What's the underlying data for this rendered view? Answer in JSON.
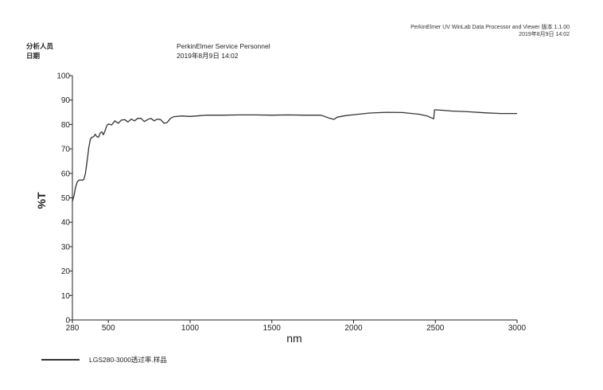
{
  "header": {
    "software": "PerkinElmer UV WinLab Data Processor and Viewer 版本 1.1.00",
    "timestamp": "2019年8月9日 14:02"
  },
  "meta": {
    "analyst_label": "分析人员",
    "date_label": "日期",
    "analyst_value": "PerkinElmer Service Personnel",
    "date_value": "2019年8月9日 14:02"
  },
  "chart_data": {
    "type": "line",
    "xlabel": "nm",
    "ylabel": "%T",
    "xlim": [
      280,
      3000
    ],
    "ylim": [
      0,
      100
    ],
    "x_ticks": [
      280,
      500,
      1000,
      1500,
      2000,
      2500,
      3000
    ],
    "y_ticks": [
      0,
      10,
      20,
      30,
      40,
      50,
      60,
      70,
      80,
      90,
      100
    ],
    "grid": false,
    "legend_position": "bottom-left",
    "series": [
      {
        "name": "LGS280-3000透过率.样品",
        "color": "#333333",
        "x": [
          280,
          290,
          300,
          310,
          320,
          330,
          340,
          350,
          360,
          370,
          380,
          390,
          400,
          410,
          420,
          430,
          440,
          450,
          460,
          470,
          480,
          490,
          500,
          520,
          540,
          560,
          580,
          600,
          620,
          640,
          660,
          680,
          700,
          720,
          740,
          760,
          780,
          800,
          820,
          840,
          860,
          880,
          900,
          950,
          1000,
          1100,
          1200,
          1300,
          1400,
          1500,
          1600,
          1700,
          1800,
          1850,
          1880,
          1900,
          1950,
          2000,
          2100,
          2200,
          2300,
          2400,
          2450,
          2490,
          2495,
          2500,
          2550,
          2600,
          2700,
          2800,
          2900,
          3000
        ],
        "values": [
          48.5,
          51,
          54.5,
          56.5,
          57.2,
          57.3,
          57.2,
          57.5,
          60,
          65,
          70.5,
          74,
          74.8,
          75,
          76,
          75,
          74.8,
          76.5,
          77,
          75.8,
          77.5,
          79.5,
          80.2,
          79.8,
          81.5,
          80.5,
          81.8,
          82,
          81,
          82.2,
          81.5,
          82.5,
          82.5,
          81.2,
          82,
          82.5,
          81.5,
          82.2,
          82,
          80.5,
          80.8,
          82.5,
          83.2,
          83.5,
          83.3,
          83.8,
          83.8,
          83.9,
          83.9,
          83.8,
          83.9,
          83.8,
          83.8,
          82.6,
          82.1,
          83,
          83.6,
          84,
          84.7,
          85,
          84.9,
          84.2,
          83.5,
          82.3,
          86,
          86,
          85.8,
          85.5,
          85.2,
          84.8,
          84.5,
          84.5
        ]
      }
    ]
  }
}
